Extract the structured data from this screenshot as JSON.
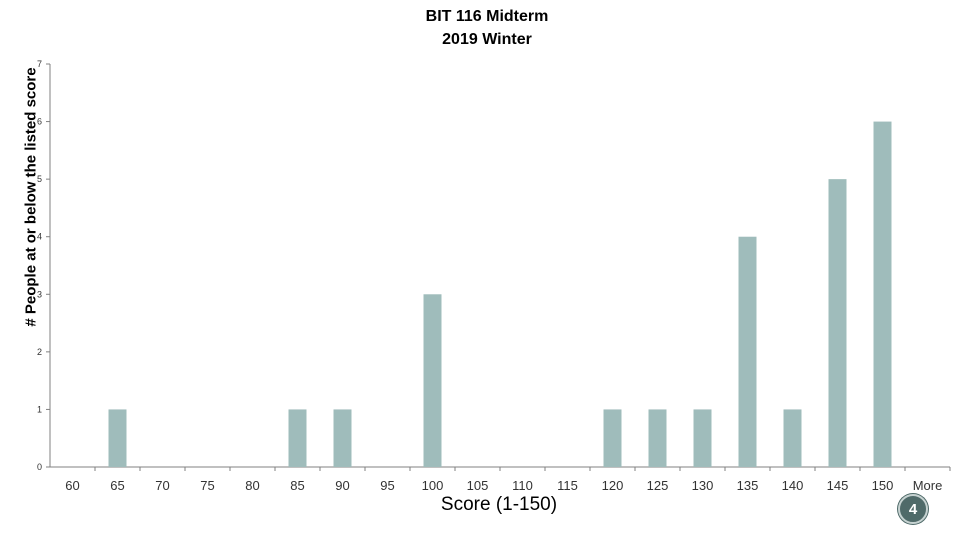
{
  "chart_data": {
    "type": "bar",
    "title": "BIT 116 Midterm",
    "subtitle": "2019 Winter",
    "xlabel": "Score (1-150)",
    "ylabel": "# People at or below the listed score",
    "categories": [
      "60",
      "65",
      "70",
      "75",
      "80",
      "85",
      "90",
      "95",
      "100",
      "105",
      "110",
      "115",
      "120",
      "125",
      "130",
      "135",
      "140",
      "145",
      "150",
      "More"
    ],
    "values": [
      0,
      1,
      0,
      0,
      0,
      1,
      1,
      0,
      3,
      0,
      0,
      0,
      1,
      1,
      1,
      4,
      1,
      5,
      6,
      0
    ],
    "ylim": [
      0,
      7
    ],
    "yticks": [
      0,
      1,
      2,
      3,
      4,
      5,
      6,
      7
    ],
    "grid": false,
    "bar_color": "#9fbcbb"
  },
  "slide_number": "4"
}
